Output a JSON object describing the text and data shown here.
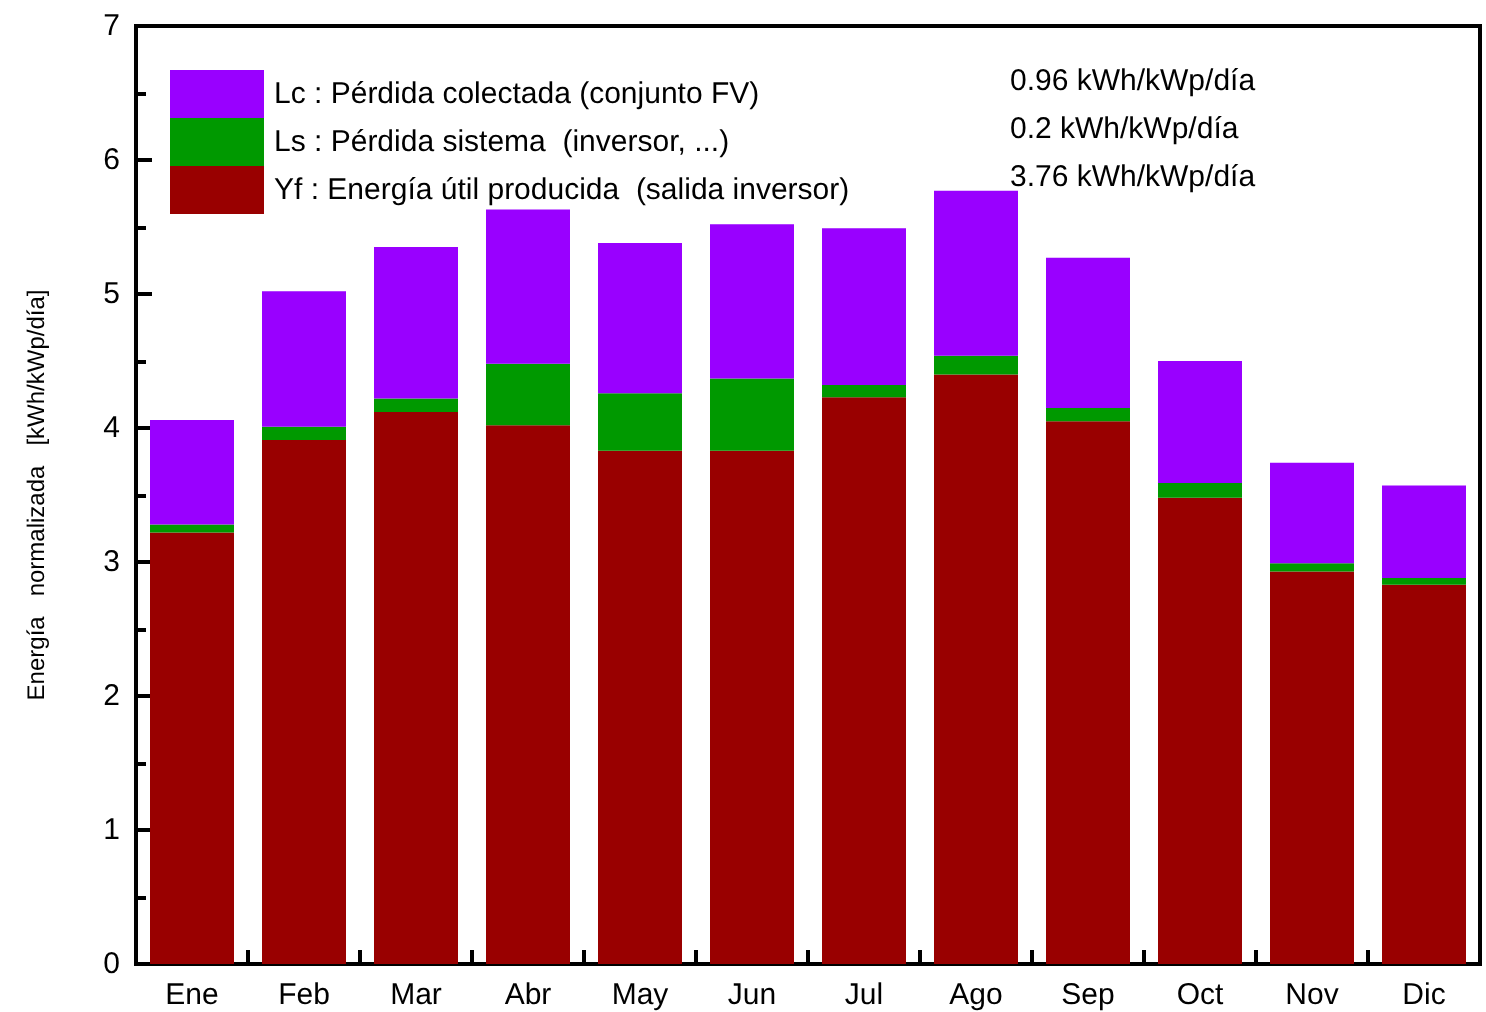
{
  "chart_data": {
    "type": "bar",
    "stacked": true,
    "ylabel": "Energía   normalizada   [kWh/kWp/día]",
    "categories": [
      "Ene",
      "Feb",
      "Mar",
      "Abr",
      "May",
      "Jun",
      "Jul",
      "Ago",
      "Sep",
      "Oct",
      "Nov",
      "Dic"
    ],
    "series": [
      {
        "name": "Yf : Energía útil producida  (salida inversor)",
        "color": "#990000",
        "values": [
          3.22,
          3.91,
          4.12,
          4.02,
          3.83,
          3.83,
          4.23,
          4.4,
          4.05,
          3.48,
          2.93,
          2.83
        ]
      },
      {
        "name": "Ls : Pérdida sistema  (inversor, ...)",
        "color": "#009900",
        "values": [
          0.06,
          0.1,
          0.1,
          0.46,
          0.43,
          0.54,
          0.09,
          0.14,
          0.1,
          0.11,
          0.06,
          0.05
        ]
      },
      {
        "name": "Lc : Pérdida colectada (conjunto FV)",
        "color": "#9900ff",
        "values": [
          0.78,
          1.01,
          1.13,
          1.15,
          1.12,
          1.15,
          1.17,
          1.23,
          1.12,
          0.91,
          0.75,
          0.69
        ]
      }
    ],
    "annotations": [
      "0.96 kWh/kWp/día",
      "0.2 kWh/kWp/día",
      "3.76 kWh/kWp/día"
    ],
    "ylim": [
      0,
      7
    ],
    "yticks": [
      0,
      1,
      2,
      3,
      4,
      5,
      6,
      7
    ],
    "grid": false,
    "legend": "top left"
  }
}
